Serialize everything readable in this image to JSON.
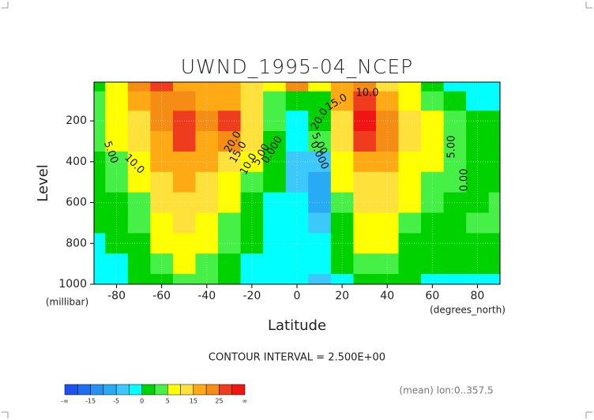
{
  "chart_data": {
    "type": "contour",
    "title": "UWND_1995-04_NCEP",
    "y_label": "Level",
    "y_unit": "(millibar)",
    "x_label": "Latitude",
    "x_unit": "(degrees_north)",
    "subtitle": "CONTOUR INTERVAL = 2.500E+00",
    "footnote": "(mean) lon:0..357.5",
    "x": [
      -90,
      -80,
      -70,
      -60,
      -50,
      -40,
      -30,
      -20,
      -10,
      0,
      10,
      20,
      30,
      40,
      50,
      60,
      70,
      80,
      90
    ],
    "y": [
      10,
      100,
      200,
      300,
      400,
      500,
      600,
      700,
      800,
      900,
      1000
    ],
    "z": [
      [
        2,
        8,
        20,
        25,
        18,
        15,
        15,
        10,
        5,
        22,
        5,
        15,
        20,
        10,
        5,
        2,
        -1,
        -2,
        -2
      ],
      [
        3,
        8,
        15,
        20,
        20,
        18,
        18,
        12,
        3,
        2,
        0,
        18,
        25,
        18,
        8,
        3,
        0,
        -1,
        -1
      ],
      [
        3,
        6,
        12,
        20,
        26,
        20,
        26,
        14,
        3,
        -1,
        1,
        14,
        30,
        24,
        12,
        5,
        3,
        1,
        1
      ],
      [
        3,
        5,
        10,
        18,
        25,
        18,
        20,
        12,
        2,
        -2,
        3,
        10,
        25,
        20,
        10,
        6,
        3,
        2,
        1
      ],
      [
        2,
        4,
        8,
        15,
        18,
        15,
        12,
        6,
        1,
        -3,
        -5,
        8,
        18,
        15,
        8,
        5,
        3,
        2,
        2
      ],
      [
        2,
        3,
        6,
        12,
        15,
        12,
        8,
        4,
        0,
        -3,
        -6,
        5,
        14,
        12,
        6,
        4,
        3,
        2,
        2
      ],
      [
        1,
        2,
        4,
        10,
        12,
        10,
        6,
        2,
        -1,
        -2,
        -6,
        3,
        10,
        10,
        5,
        3,
        2,
        2,
        3
      ],
      [
        1,
        1,
        3,
        8,
        10,
        8,
        4,
        1,
        -1,
        -2,
        -4,
        2,
        7,
        7,
        3,
        2,
        1,
        3,
        3
      ],
      [
        -1,
        0,
        2,
        5,
        8,
        6,
        3,
        0,
        -1,
        -1,
        -2,
        1,
        5,
        5,
        2,
        1,
        0,
        1,
        1
      ],
      [
        -1,
        -1,
        1,
        3,
        6,
        4,
        2,
        -1,
        -1,
        -1,
        -2,
        0,
        3,
        3,
        1,
        0,
        0,
        0,
        0
      ],
      [
        -1,
        -1,
        0,
        2,
        4,
        3,
        1,
        -1,
        -1,
        -1,
        -4,
        -1,
        2,
        2,
        1,
        -1,
        -1,
        -1,
        -1
      ]
    ],
    "xlim": [
      -90,
      90
    ],
    "ylim": [
      1000,
      10
    ],
    "xticks": [
      -80,
      -60,
      -40,
      -20,
      0,
      20,
      40,
      60,
      80
    ],
    "yticks": [
      200,
      400,
      600,
      800,
      1000
    ],
    "grid": true,
    "contour_labels": [
      "5.00",
      "10.0",
      "20.0",
      "15.0",
      "10.0",
      "5.00",
      "0.000",
      "5.00",
      "0.000",
      "15.0",
      "20.0",
      "10.0",
      "5.00",
      "0.00"
    ],
    "colorbar": {
      "labels": [
        "-∞",
        "-15",
        "-5",
        "0",
        "5",
        "15",
        "25",
        "∞"
      ],
      "levels": [
        -20,
        -15,
        -10,
        -5,
        -2.5,
        0,
        2.5,
        5,
        10,
        15,
        20,
        25,
        30
      ],
      "colors": [
        "#1e50f0",
        "#1e6ef0",
        "#2890f0",
        "#28aaf5",
        "#3cc8fa",
        "#00ffff",
        "#00d200",
        "#46f046",
        "#ffff00",
        "#ffe13c",
        "#ffaa14",
        "#f58c14",
        "#f03c1e",
        "#f01414"
      ]
    }
  }
}
